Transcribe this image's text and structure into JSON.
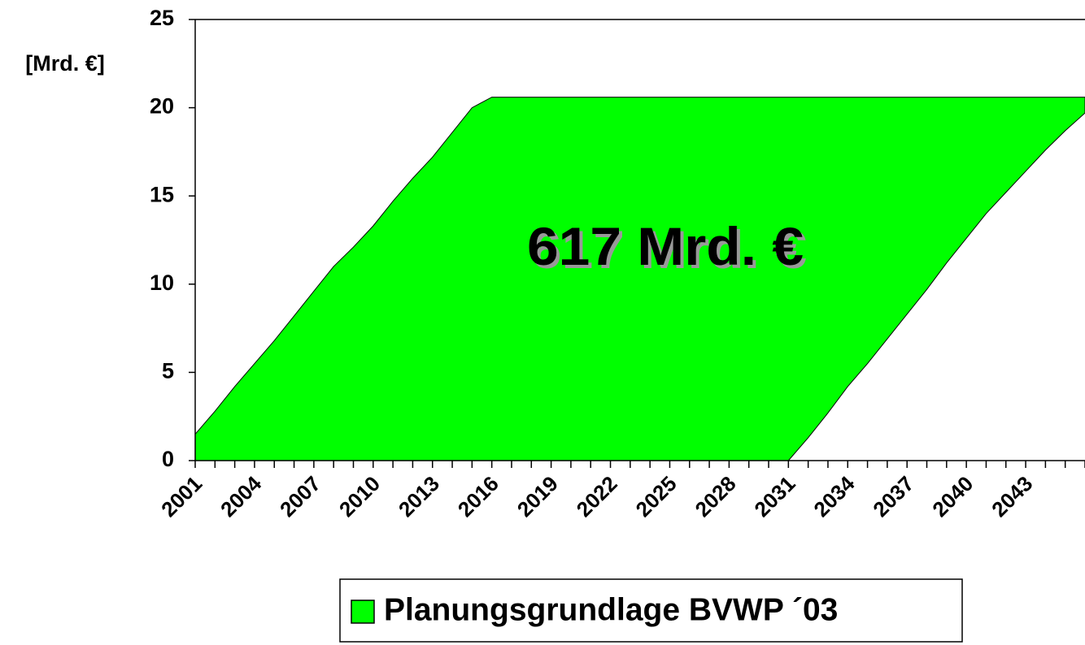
{
  "chart_data": {
    "type": "stacked-area",
    "ylabel": "[Mrd. €]",
    "annotation": "617 Mrd. €",
    "categories": [
      "2001",
      null,
      null,
      "2004",
      null,
      null,
      "2007",
      null,
      null,
      "2010",
      null,
      null,
      "2013",
      null,
      null,
      "2016",
      null,
      null,
      "2019",
      null,
      null,
      "2022",
      null,
      null,
      "2025",
      null,
      null,
      "2028",
      null,
      null,
      "2031",
      null,
      null,
      "2034",
      null,
      null,
      "2037",
      null,
      null,
      "2040",
      null,
      null,
      "2043",
      null,
      null,
      null
    ],
    "series": [
      {
        "color": "#ffffff",
        "values": [
          0,
          0,
          0,
          0,
          0,
          0,
          0,
          0,
          0,
          0,
          0,
          0,
          0,
          0,
          0,
          0,
          0,
          0,
          0,
          0,
          0,
          0,
          0,
          0,
          0,
          0,
          0,
          0,
          0,
          0,
          0,
          1.3,
          2.7,
          4.2,
          5.5,
          6.9,
          8.3,
          9.7,
          11.2,
          12.6,
          14.0,
          15.2,
          16.4,
          17.6,
          18.7,
          19.7
        ]
      },
      {
        "name": "Planungsgrundlage BVWP ´03",
        "color": "#00ff00",
        "values": [
          1.5,
          2.8,
          4.2,
          5.5,
          6.8,
          8.2,
          9.6,
          11.0,
          12.1,
          13.3,
          14.7,
          16.0,
          17.2,
          18.6,
          20.0,
          20.6,
          20.6,
          20.6,
          20.6,
          20.6,
          20.6,
          20.6,
          20.6,
          20.6,
          20.6,
          20.6,
          20.6,
          20.6,
          20.6,
          20.6,
          20.6,
          19.3,
          17.9,
          16.4,
          15.1,
          13.7,
          12.3,
          10.9,
          9.4,
          8.0,
          6.6,
          5.4,
          4.2,
          3.0,
          1.9,
          0.9
        ]
      }
    ],
    "ylim": [
      0,
      25
    ],
    "yticks": [
      0,
      5,
      10,
      15,
      20,
      25
    ]
  }
}
